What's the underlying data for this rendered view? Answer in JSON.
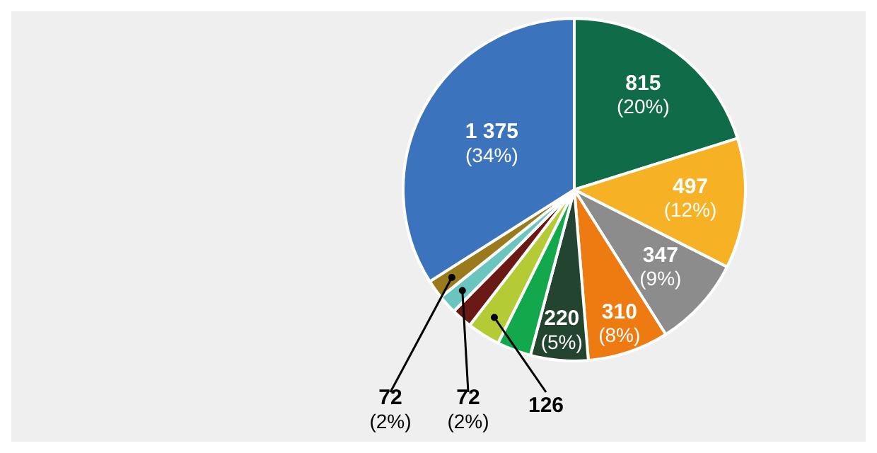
{
  "chart_data": {
    "type": "pie",
    "categories": [
      null,
      null,
      null,
      null,
      null,
      null,
      null,
      null,
      null,
      null,
      null
    ],
    "values": [
      815,
      497,
      347,
      310,
      220,
      130,
      126,
      80,
      72,
      72,
      1375
    ],
    "colors": [
      "#0f6b48",
      "#f6b124",
      "#8c8c8c",
      "#ee7a12",
      "#23452f",
      "#12a84b",
      "#b4cb36",
      "#6b1914",
      "#6ac5bf",
      "#9b7a1d",
      "#3b74bd"
    ],
    "value_labels": [
      "815 (20%)",
      "497 (12%)",
      "347 (9%)",
      "310 (8%)",
      "220 (5%)",
      null,
      "126",
      null,
      "72 (2%)",
      "72 (2%)",
      "1 375 (34%)"
    ],
    "legend": false
  }
}
